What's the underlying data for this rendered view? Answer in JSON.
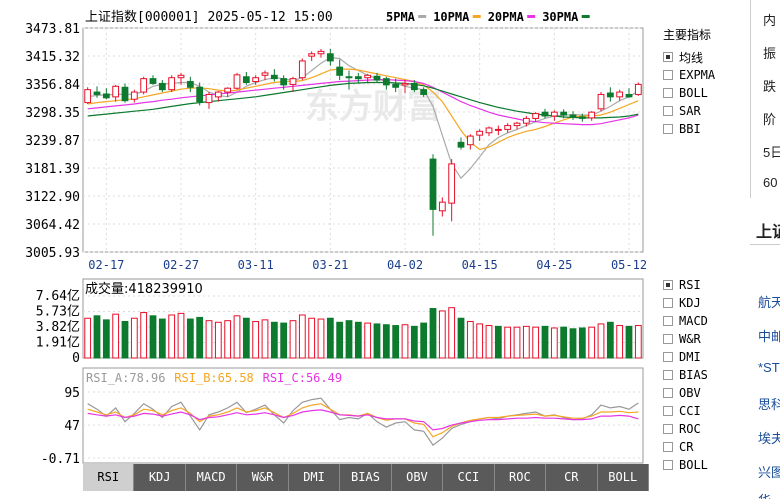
{
  "header": {
    "index_label": "上证指数[000001] 2025-05-12 15:00",
    "ma_legend": [
      {
        "label": "5PMA",
        "color": "#aaaaaa"
      },
      {
        "label": "10PMA",
        "color": "#f5a623"
      },
      {
        "label": "20PMA",
        "color": "#e535e5"
      },
      {
        "label": "30PMA",
        "color": "#0d7a2e"
      }
    ]
  },
  "watermark": "东方财富",
  "main_indicators": {
    "title": "主要指标",
    "items": [
      {
        "label": "均线",
        "checked": true
      },
      {
        "label": "EXPMA",
        "checked": false
      },
      {
        "label": "BOLL",
        "checked": false
      },
      {
        "label": "SAR",
        "checked": false
      },
      {
        "label": "BBI",
        "checked": false
      }
    ]
  },
  "sub_indicators": {
    "items": [
      {
        "label": "RSI",
        "checked": true
      },
      {
        "label": "KDJ",
        "checked": false
      },
      {
        "label": "MACD",
        "checked": false
      },
      {
        "label": "W&R",
        "checked": false
      },
      {
        "label": "DMI",
        "checked": false
      },
      {
        "label": "BIAS",
        "checked": false
      },
      {
        "label": "OBV",
        "checked": false
      },
      {
        "label": "CCI",
        "checked": false
      },
      {
        "label": "ROC",
        "checked": false
      },
      {
        "label": "CR",
        "checked": false
      },
      {
        "label": "BOLL",
        "checked": false
      }
    ]
  },
  "tabs": [
    "RSI",
    "KDJ",
    "MACD",
    "W&R",
    "DMI",
    "BIAS",
    "OBV",
    "CCI",
    "ROC",
    "CR",
    "BOLL"
  ],
  "active_tab": "RSI",
  "side_panel": {
    "top_rows": [
      "内",
      "振",
      "跌",
      "阶",
      "5日",
      "60"
    ],
    "title": "上证",
    "list": [
      "航天",
      "中邮",
      "*ST",
      "思科",
      "埃夫",
      "兴图",
      "华"
    ]
  },
  "colors": {
    "up": "#e8102a",
    "down": "#0d7a2e",
    "grid": "#dcdcdc",
    "axis": "#555555"
  },
  "chart_data": [
    {
      "type": "candlestick",
      "title": "上证指数[000001]",
      "y_ticks": [
        "3473.81",
        "3415.32",
        "3356.84",
        "3298.35",
        "3239.87",
        "3181.39",
        "3122.90",
        "3064.42",
        "3005.93"
      ],
      "ylim": [
        3005.93,
        3473.81
      ],
      "x_ticks": [
        {
          "label": "02-17",
          "index": 2
        },
        {
          "label": "02-27",
          "index": 10
        },
        {
          "label": "03-11",
          "index": 18
        },
        {
          "label": "03-21",
          "index": 26
        },
        {
          "label": "04-02",
          "index": 34
        },
        {
          "label": "04-15",
          "index": 42
        },
        {
          "label": "04-25",
          "index": 50
        },
        {
          "label": "05-12",
          "index": 58
        }
      ],
      "candles": [
        {
          "o": 3318,
          "h": 3350,
          "l": 3315,
          "c": 3345
        },
        {
          "o": 3340,
          "h": 3352,
          "l": 3328,
          "c": 3335
        },
        {
          "o": 3336,
          "h": 3348,
          "l": 3325,
          "c": 3328
        },
        {
          "o": 3330,
          "h": 3355,
          "l": 3320,
          "c": 3352
        },
        {
          "o": 3350,
          "h": 3358,
          "l": 3318,
          "c": 3322
        },
        {
          "o": 3325,
          "h": 3345,
          "l": 3318,
          "c": 3340
        },
        {
          "o": 3340,
          "h": 3372,
          "l": 3335,
          "c": 3368
        },
        {
          "o": 3368,
          "h": 3375,
          "l": 3355,
          "c": 3358
        },
        {
          "o": 3358,
          "h": 3365,
          "l": 3340,
          "c": 3345
        },
        {
          "o": 3345,
          "h": 3375,
          "l": 3340,
          "c": 3370
        },
        {
          "o": 3370,
          "h": 3380,
          "l": 3355,
          "c": 3375
        },
        {
          "o": 3362,
          "h": 3372,
          "l": 3340,
          "c": 3350
        },
        {
          "o": 3350,
          "h": 3360,
          "l": 3312,
          "c": 3320
        },
        {
          "o": 3318,
          "h": 3340,
          "l": 3305,
          "c": 3335
        },
        {
          "o": 3330,
          "h": 3342,
          "l": 3320,
          "c": 3340
        },
        {
          "o": 3340,
          "h": 3350,
          "l": 3330,
          "c": 3348
        },
        {
          "o": 3348,
          "h": 3380,
          "l": 3345,
          "c": 3376
        },
        {
          "o": 3372,
          "h": 3382,
          "l": 3355,
          "c": 3360
        },
        {
          "o": 3362,
          "h": 3375,
          "l": 3355,
          "c": 3370
        },
        {
          "o": 3375,
          "h": 3385,
          "l": 3365,
          "c": 3380
        },
        {
          "o": 3375,
          "h": 3388,
          "l": 3362,
          "c": 3368
        },
        {
          "o": 3368,
          "h": 3375,
          "l": 3345,
          "c": 3355
        },
        {
          "o": 3356,
          "h": 3372,
          "l": 3340,
          "c": 3368
        },
        {
          "o": 3370,
          "h": 3410,
          "l": 3365,
          "c": 3405
        },
        {
          "o": 3415,
          "h": 3425,
          "l": 3405,
          "c": 3420
        },
        {
          "o": 3420,
          "h": 3430,
          "l": 3412,
          "c": 3425
        },
        {
          "o": 3420,
          "h": 3430,
          "l": 3395,
          "c": 3405
        },
        {
          "o": 3392,
          "h": 3408,
          "l": 3365,
          "c": 3375
        },
        {
          "o": 3372,
          "h": 3385,
          "l": 3345,
          "c": 3370
        },
        {
          "o": 3372,
          "h": 3380,
          "l": 3360,
          "c": 3368
        },
        {
          "o": 3370,
          "h": 3378,
          "l": 3358,
          "c": 3375
        },
        {
          "o": 3373,
          "h": 3380,
          "l": 3360,
          "c": 3365
        },
        {
          "o": 3368,
          "h": 3372,
          "l": 3345,
          "c": 3355
        },
        {
          "o": 3356,
          "h": 3368,
          "l": 3340,
          "c": 3350
        },
        {
          "o": 3355,
          "h": 3365,
          "l": 3338,
          "c": 3358
        },
        {
          "o": 3358,
          "h": 3365,
          "l": 3340,
          "c": 3345
        },
        {
          "o": 3345,
          "h": 3350,
          "l": 3330,
          "c": 3335
        },
        {
          "o": 3200,
          "h": 3210,
          "l": 3040,
          "c": 3095
        },
        {
          "o": 3092,
          "h": 3120,
          "l": 3080,
          "c": 3110
        },
        {
          "o": 3108,
          "h": 3200,
          "l": 3070,
          "c": 3190
        },
        {
          "o": 3235,
          "h": 3245,
          "l": 3220,
          "c": 3225
        },
        {
          "o": 3230,
          "h": 3252,
          "l": 3220,
          "c": 3248
        },
        {
          "o": 3250,
          "h": 3262,
          "l": 3238,
          "c": 3258
        },
        {
          "o": 3255,
          "h": 3268,
          "l": 3248,
          "c": 3265
        },
        {
          "o": 3260,
          "h": 3270,
          "l": 3250,
          "c": 3262
        },
        {
          "o": 3262,
          "h": 3275,
          "l": 3255,
          "c": 3270
        },
        {
          "o": 3270,
          "h": 3278,
          "l": 3262,
          "c": 3275
        },
        {
          "o": 3275,
          "h": 3290,
          "l": 3268,
          "c": 3285
        },
        {
          "o": 3285,
          "h": 3298,
          "l": 3278,
          "c": 3295
        },
        {
          "o": 3298,
          "h": 3305,
          "l": 3285,
          "c": 3290
        },
        {
          "o": 3290,
          "h": 3302,
          "l": 3280,
          "c": 3298
        },
        {
          "o": 3298,
          "h": 3304,
          "l": 3285,
          "c": 3292
        },
        {
          "o": 3292,
          "h": 3300,
          "l": 3282,
          "c": 3288
        },
        {
          "o": 3288,
          "h": 3295,
          "l": 3278,
          "c": 3285
        },
        {
          "o": 3286,
          "h": 3300,
          "l": 3280,
          "c": 3298
        },
        {
          "o": 3305,
          "h": 3340,
          "l": 3300,
          "c": 3335
        },
        {
          "o": 3338,
          "h": 3350,
          "l": 3320,
          "c": 3330
        },
        {
          "o": 3330,
          "h": 3345,
          "l": 3322,
          "c": 3340
        },
        {
          "o": 3335,
          "h": 3348,
          "l": 3328,
          "c": 3330
        },
        {
          "o": 3335,
          "h": 3360,
          "l": 3332,
          "c": 3356
        }
      ],
      "ma_series": [
        {
          "name": "5PMA",
          "values": [
            3330,
            3333,
            3334,
            3335,
            3336,
            3335,
            3342,
            3352,
            3356,
            3358,
            3360,
            3360,
            3352,
            3340,
            3333,
            3330,
            3340,
            3352,
            3360,
            3366,
            3370,
            3368,
            3364,
            3370,
            3385,
            3400,
            3412,
            3410,
            3395,
            3385,
            3375,
            3368,
            3362,
            3358,
            3352,
            3348,
            3345,
            3310,
            3250,
            3190,
            3160,
            3180,
            3205,
            3230,
            3245,
            3255,
            3262,
            3270,
            3278,
            3285,
            3290,
            3292,
            3293,
            3292,
            3292,
            3300,
            3310,
            3322,
            3330,
            3342
          ]
        },
        {
          "name": "10PMA",
          "values": [
            3315,
            3318,
            3320,
            3322,
            3324,
            3326,
            3330,
            3334,
            3338,
            3342,
            3346,
            3348,
            3349,
            3347,
            3344,
            3342,
            3344,
            3348,
            3352,
            3356,
            3360,
            3362,
            3362,
            3364,
            3370,
            3378,
            3386,
            3388,
            3388,
            3386,
            3382,
            3378,
            3374,
            3370,
            3366,
            3362,
            3355,
            3340,
            3320,
            3290,
            3260,
            3235,
            3220,
            3225,
            3235,
            3245,
            3252,
            3258,
            3262,
            3268,
            3275,
            3282,
            3288,
            3290,
            3290,
            3292,
            3298,
            3306,
            3314,
            3322
          ]
        },
        {
          "name": "20PMA",
          "values": [
            3305,
            3307,
            3309,
            3311,
            3313,
            3315,
            3318,
            3320,
            3323,
            3325,
            3328,
            3330,
            3332,
            3334,
            3336,
            3338,
            3340,
            3342,
            3344,
            3346,
            3348,
            3350,
            3352,
            3354,
            3356,
            3358,
            3360,
            3362,
            3363,
            3364,
            3365,
            3366,
            3366,
            3365,
            3364,
            3362,
            3358,
            3350,
            3340,
            3330,
            3320,
            3312,
            3305,
            3298,
            3292,
            3288,
            3284,
            3280,
            3278,
            3276,
            3275,
            3274,
            3273,
            3272,
            3272,
            3274,
            3278,
            3282,
            3286,
            3292
          ]
        },
        {
          "name": "30PMA",
          "values": [
            3290,
            3292,
            3294,
            3296,
            3298,
            3300,
            3302,
            3304,
            3307,
            3310,
            3313,
            3316,
            3318,
            3320,
            3322,
            3324,
            3326,
            3328,
            3330,
            3333,
            3336,
            3339,
            3342,
            3345,
            3348,
            3351,
            3354,
            3356,
            3358,
            3359,
            3360,
            3360,
            3360,
            3359,
            3358,
            3356,
            3353,
            3348,
            3342,
            3336,
            3330,
            3324,
            3318,
            3313,
            3308,
            3304,
            3300,
            3297,
            3294,
            3292,
            3290,
            3288,
            3287,
            3286,
            3286,
            3286,
            3287,
            3288,
            3290,
            3294
          ]
        }
      ]
    },
    {
      "type": "bar",
      "title": "成交量",
      "value_label": "418239910",
      "y_ticks": [
        "7.64亿",
        "5.73亿",
        "3.82亿",
        "1.91亿",
        "0"
      ],
      "ylim": [
        0,
        7.64
      ],
      "unit": "亿",
      "values": [
        4.9,
        5.2,
        4.7,
        5.4,
        4.5,
        4.9,
        5.6,
        5.2,
        4.8,
        5.3,
        5.5,
        4.8,
        5.0,
        4.6,
        4.4,
        4.6,
        5.2,
        4.9,
        4.5,
        4.7,
        4.4,
        4.3,
        4.6,
        5.3,
        4.9,
        4.8,
        4.9,
        4.4,
        4.6,
        4.4,
        4.3,
        4.2,
        4.1,
        4.0,
        4.1,
        3.9,
        4.3,
        6.1,
        5.8,
        6.2,
        4.9,
        4.5,
        4.2,
        4.0,
        3.9,
        3.8,
        3.8,
        3.9,
        3.8,
        3.9,
        3.7,
        3.8,
        3.6,
        3.7,
        3.8,
        4.2,
        4.4,
        4.0,
        3.9,
        4.0
      ],
      "up": [
        true,
        false,
        false,
        true,
        false,
        true,
        true,
        false,
        false,
        true,
        true,
        false,
        false,
        true,
        true,
        true,
        true,
        false,
        true,
        true,
        false,
        false,
        true,
        true,
        true,
        true,
        false,
        false,
        false,
        false,
        true,
        false,
        false,
        false,
        true,
        false,
        false,
        false,
        true,
        true,
        false,
        true,
        true,
        true,
        false,
        true,
        true,
        true,
        true,
        false,
        true,
        false,
        false,
        false,
        true,
        true,
        false,
        true,
        false,
        true
      ]
    },
    {
      "type": "line",
      "title": "RSI",
      "y_ticks": [
        "95",
        "47",
        "-0.71"
      ],
      "ylim": [
        -0.71,
        95
      ],
      "legend": [
        {
          "label": "RSI_A:78.96",
          "color": "#999999"
        },
        {
          "label": "RSI_B:65.58",
          "color": "#f5a623"
        },
        {
          "label": "RSI_C:56.49",
          "color": "#e535e5"
        }
      ],
      "series": [
        {
          "name": "RSI_A",
          "values": [
            78,
            70,
            60,
            72,
            52,
            64,
            78,
            70,
            58,
            74,
            80,
            60,
            40,
            62,
            66,
            72,
            80,
            65,
            70,
            76,
            62,
            50,
            68,
            80,
            84,
            86,
            70,
            55,
            58,
            56,
            64,
            52,
            44,
            50,
            52,
            40,
            38,
            18,
            28,
            42,
            48,
            52,
            56,
            58,
            56,
            60,
            62,
            64,
            66,
            60,
            62,
            58,
            55,
            56,
            62,
            76,
            72,
            74,
            70,
            79
          ]
        },
        {
          "name": "RSI_B",
          "values": [
            70,
            66,
            62,
            66,
            58,
            62,
            70,
            68,
            62,
            68,
            72,
            64,
            52,
            60,
            62,
            66,
            72,
            66,
            68,
            72,
            65,
            58,
            64,
            72,
            76,
            78,
            70,
            62,
            62,
            60,
            64,
            58,
            54,
            56,
            56,
            50,
            48,
            30,
            36,
            45,
            50,
            54,
            56,
            58,
            58,
            60,
            61,
            62,
            63,
            60,
            61,
            59,
            57,
            57,
            60,
            66,
            66,
            67,
            65,
            66
          ]
        },
        {
          "name": "RSI_C",
          "values": [
            64,
            62,
            60,
            62,
            58,
            60,
            64,
            63,
            60,
            63,
            66,
            62,
            55,
            58,
            59,
            62,
            65,
            62,
            63,
            65,
            62,
            58,
            61,
            66,
            68,
            69,
            66,
            62,
            61,
            60,
            62,
            58,
            56,
            56,
            56,
            53,
            52,
            40,
            42,
            47,
            50,
            52,
            54,
            55,
            55,
            56,
            57,
            57,
            58,
            57,
            57,
            56,
            55,
            55,
            56,
            60,
            60,
            61,
            60,
            56
          ]
        }
      ]
    }
  ]
}
